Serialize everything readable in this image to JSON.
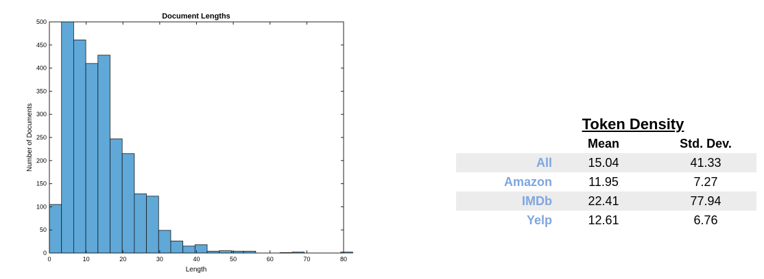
{
  "chart_data": {
    "type": "bar",
    "title": "Document Lengths",
    "xlabel": "Length",
    "ylabel": "Number of Documents",
    "xlim": [
      0,
      80
    ],
    "ylim": [
      0,
      500
    ],
    "xticks": [
      0,
      10,
      20,
      30,
      40,
      50,
      60,
      70,
      80
    ],
    "yticks": [
      0,
      50,
      100,
      150,
      200,
      250,
      300,
      350,
      400,
      450,
      500
    ],
    "bin_width": 3.3,
    "bin_edges_start": 0,
    "values": [
      105,
      500,
      461,
      410,
      428,
      247,
      215,
      128,
      123,
      49,
      26,
      15,
      18,
      4,
      5,
      4,
      4,
      0,
      0,
      1,
      2,
      0,
      0,
      0,
      2
    ],
    "color": "#5fa8d8",
    "grid": false
  },
  "token_density": {
    "title": "Token Density",
    "headers": {
      "label": "",
      "mean": "Mean",
      "std": "Std. Dev."
    },
    "rows": [
      {
        "label": "All",
        "mean": "15.04",
        "std": "41.33"
      },
      {
        "label": "Amazon",
        "mean": "11.95",
        "std": "7.27"
      },
      {
        "label": "IMDb",
        "mean": "22.41",
        "std": "77.94"
      },
      {
        "label": "Yelp",
        "mean": "12.61",
        "std": "6.76"
      }
    ]
  }
}
